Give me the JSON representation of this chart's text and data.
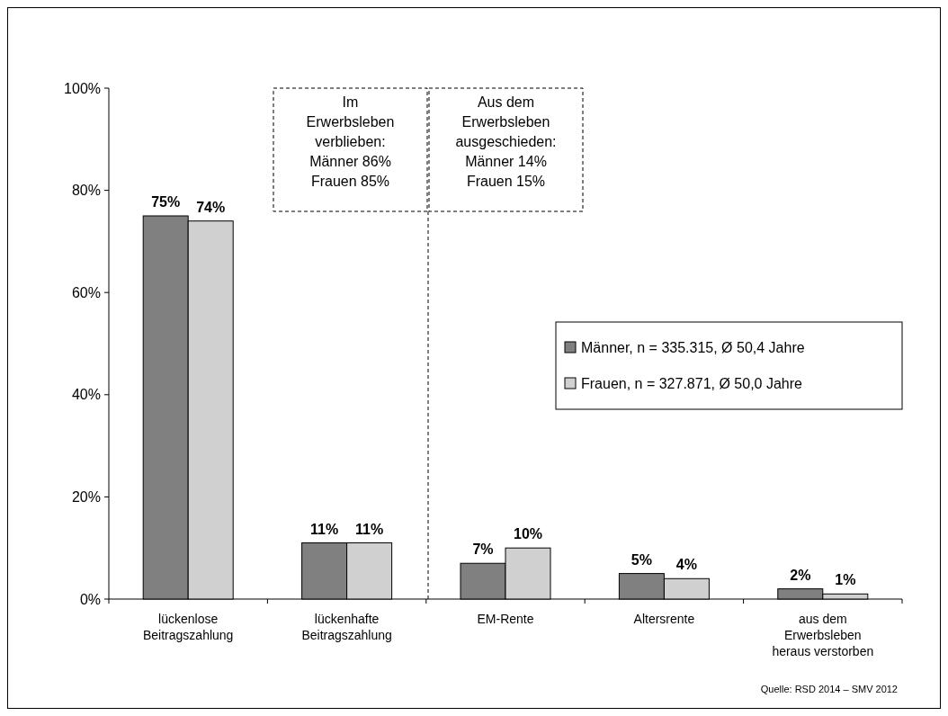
{
  "chart_data": {
    "type": "bar",
    "categories": [
      "lückenlose\nBeitragszahlung",
      "lückenhafte\nBeitragszahlung",
      "EM-Rente",
      "Altersrente",
      "aus dem\nErwerbsleben\nheraus verstorben"
    ],
    "series": [
      {
        "name": "Männer, n = 335.315, Ø 50,4 Jahre",
        "color": "#808080",
        "values": [
          75,
          11,
          7,
          5,
          2
        ],
        "value_labels": [
          "75%",
          "11%",
          "7%",
          "5%",
          "2%"
        ]
      },
      {
        "name": "Frauen, n = 327.871, Ø 50,0 Jahre",
        "color": "#d0d0d0",
        "values": [
          74,
          11,
          10,
          4,
          1
        ],
        "value_labels": [
          "74%",
          "11%",
          "10%",
          "4%",
          "1%"
        ]
      }
    ],
    "ylim": [
      0,
      100
    ],
    "yticks": [
      {
        "value": 0,
        "label": "0%"
      },
      {
        "value": 20,
        "label": "20%"
      },
      {
        "value": 40,
        "label": "40%"
      },
      {
        "value": 60,
        "label": "60%"
      },
      {
        "value": 80,
        "label": "80%"
      },
      {
        "value": 100,
        "label": "100%"
      }
    ],
    "legend": "right",
    "grid": false,
    "annotations": [
      "Im\nErwerbsleben\nverblieben:\nMänner 86%\nFrauen 85%",
      "Aus dem\nErwerbsleben\nausgeschieden:\nMänner 14%\nFrauen 15%",
      "Quelle: RSD 2014 – SMV 2012"
    ]
  }
}
